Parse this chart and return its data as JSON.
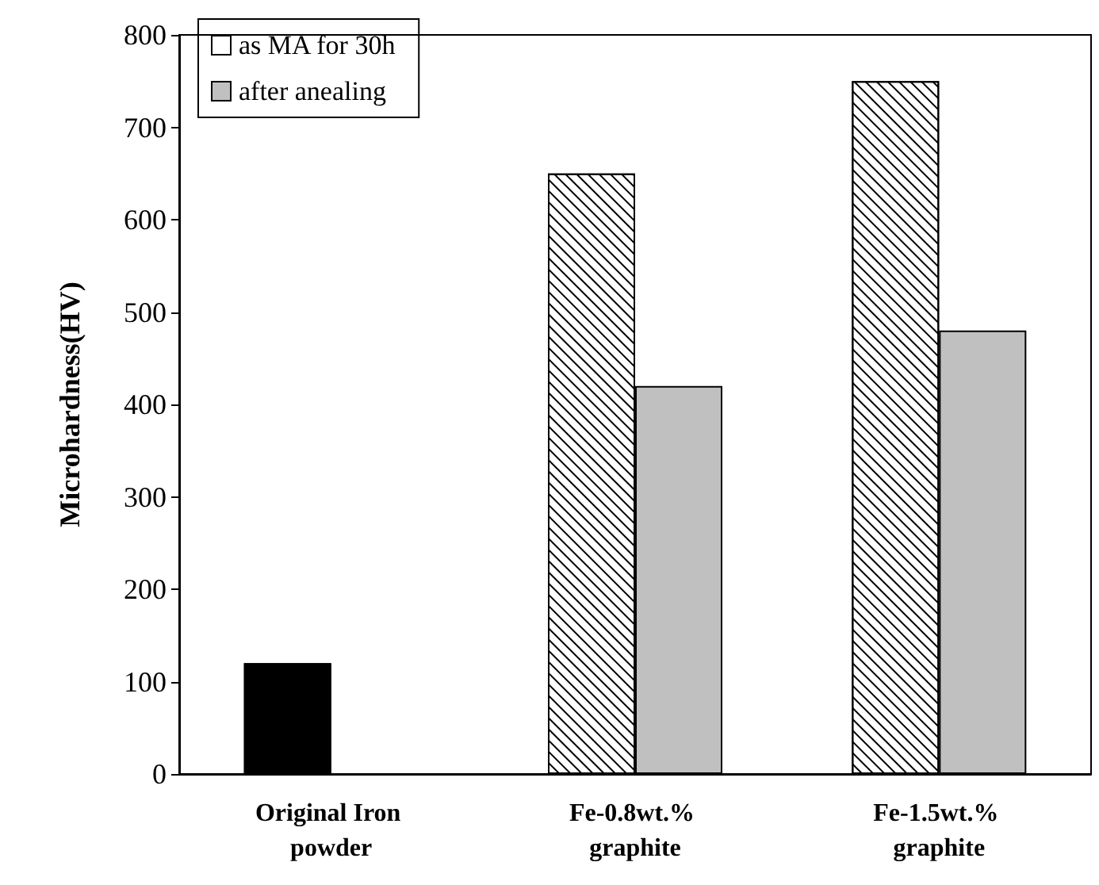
{
  "chart_data": {
    "type": "bar",
    "ylabel": "Microhardness(HV)",
    "categories": [
      "Original Iron powder",
      "Fe-0.8wt.% graphite",
      "Fe-1.5wt.% graphite"
    ],
    "series": [
      {
        "name": "as MA for 30h",
        "color": "#ffffff",
        "colors": [
          "#000000",
          "#ffffff",
          "#ffffff"
        ],
        "values": [
          120,
          650,
          750
        ]
      },
      {
        "name": "after anealing",
        "color": "#c0c0c0",
        "values": [
          null,
          420,
          480
        ]
      }
    ],
    "ylim": [
      0,
      800
    ],
    "yticks": [
      0,
      100,
      200,
      300,
      400,
      500,
      600,
      700,
      800
    ],
    "grid": false,
    "legend": "top left"
  }
}
